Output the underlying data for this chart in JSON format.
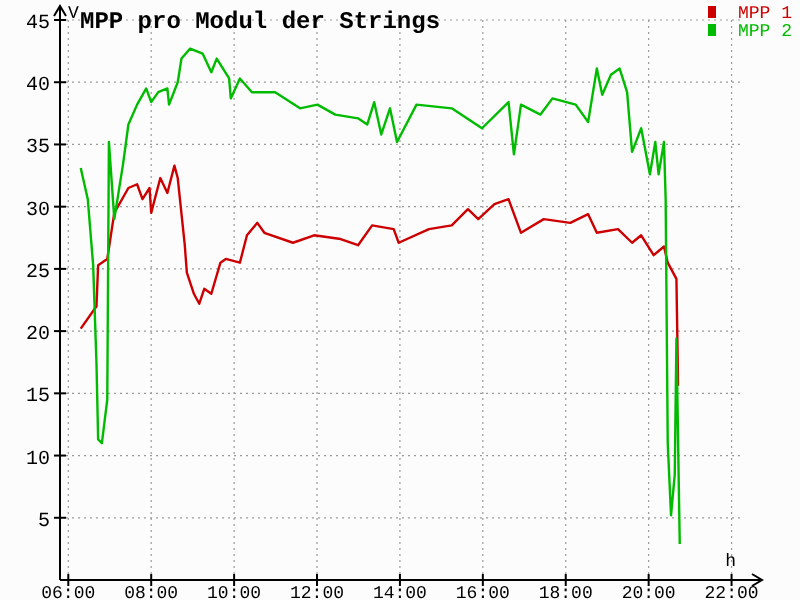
{
  "chart_data": {
    "type": "line",
    "title": "MPP pro Modul der Strings",
    "ylabel": "V",
    "xlabel": "h",
    "xlim": [
      5.8,
      22.3
    ],
    "xticks": [
      {
        "value": 6,
        "label": "06:00"
      },
      {
        "value": 8,
        "label": "08:00"
      },
      {
        "value": 10,
        "label": "10:00"
      },
      {
        "value": 12,
        "label": "12:00"
      },
      {
        "value": 14,
        "label": "14:00"
      },
      {
        "value": 16,
        "label": "16:00"
      },
      {
        "value": 18,
        "label": "18:00"
      },
      {
        "value": 20,
        "label": "20:00"
      },
      {
        "value": 22,
        "label": "22:00"
      }
    ],
    "ylim": [
      0,
      45
    ],
    "yticks": [
      5,
      10,
      15,
      20,
      25,
      30,
      35,
      40,
      45
    ],
    "grid": true,
    "legend": "top right",
    "marker": "none",
    "line_style": "solid",
    "series": [
      {
        "name": "MPP 1",
        "color": "#cc0000",
        "x": [
          6.3,
          6.68,
          6.72,
          6.94,
          7.11,
          7.45,
          7.66,
          7.79,
          7.96,
          8.0,
          8.22,
          8.39,
          8.56,
          8.64,
          8.81,
          8.86,
          9.03,
          9.16,
          9.28,
          9.45,
          9.67,
          9.8,
          10.14,
          10.31,
          10.56,
          10.73,
          11.42,
          11.93,
          12.57,
          12.99,
          13.33,
          13.85,
          13.97,
          14.7,
          15.25,
          15.64,
          15.89,
          16.28,
          16.62,
          16.92,
          17.47,
          18.11,
          18.54,
          18.75,
          19.26,
          19.6,
          19.82,
          20.12,
          20.37,
          20.46,
          20.67,
          20.71
        ],
        "values": [
          20.2,
          22,
          25.3,
          25.8,
          29.5,
          31.5,
          31.8,
          30.6,
          31.5,
          29.5,
          32.3,
          31.1,
          33.3,
          32.3,
          26.9,
          24.7,
          23,
          22.2,
          23.4,
          23,
          25.5,
          25.8,
          25.5,
          27.7,
          28.7,
          27.9,
          27.1,
          27.7,
          27.4,
          26.9,
          28.5,
          28.2,
          27.1,
          28.2,
          28.5,
          29.8,
          29,
          30.2,
          30.6,
          27.9,
          29,
          28.7,
          29.4,
          27.9,
          28.2,
          27.1,
          27.7,
          26.1,
          26.8,
          25.5,
          24.2,
          15.6
        ]
      },
      {
        "name": "MPP 2",
        "color": "#00bb00",
        "x": [
          6.3,
          6.47,
          6.6,
          6.68,
          6.72,
          6.81,
          6.94,
          6.98,
          7.11,
          7.32,
          7.45,
          7.66,
          7.88,
          8.0,
          8.17,
          8.39,
          8.43,
          8.64,
          8.73,
          8.94,
          9.24,
          9.45,
          9.58,
          9.88,
          9.92,
          10.14,
          10.43,
          10.99,
          11.59,
          12.01,
          12.44,
          12.99,
          13.21,
          13.38,
          13.55,
          13.76,
          13.93,
          14.4,
          15.25,
          15.98,
          16.62,
          16.75,
          16.92,
          17.39,
          17.68,
          18.24,
          18.54,
          18.75,
          18.88,
          19.09,
          19.3,
          19.48,
          19.6,
          19.82,
          20.03,
          20.16,
          20.24,
          20.37,
          20.41,
          20.46,
          20.54,
          20.63,
          20.67,
          20.75
        ],
        "values": [
          33.1,
          30.6,
          25.3,
          17.4,
          11.3,
          11,
          14.5,
          35.2,
          29,
          33.4,
          36.6,
          38.2,
          39.5,
          38.4,
          39.2,
          39.5,
          38.2,
          40,
          41.9,
          42.7,
          42.3,
          40.8,
          41.9,
          40.3,
          38.7,
          40.3,
          39.2,
          39.2,
          37.9,
          38.2,
          37.4,
          37.1,
          36.6,
          38.4,
          35.8,
          37.9,
          35.2,
          38.2,
          37.9,
          36.3,
          38.4,
          34.2,
          38.2,
          37.4,
          38.7,
          38.2,
          36.8,
          41.1,
          39,
          40.6,
          41.1,
          39.2,
          34.4,
          36.3,
          32.6,
          35.2,
          32.6,
          35.2,
          30.6,
          11,
          5.2,
          8.5,
          19.4,
          2.9
        ]
      }
    ]
  }
}
